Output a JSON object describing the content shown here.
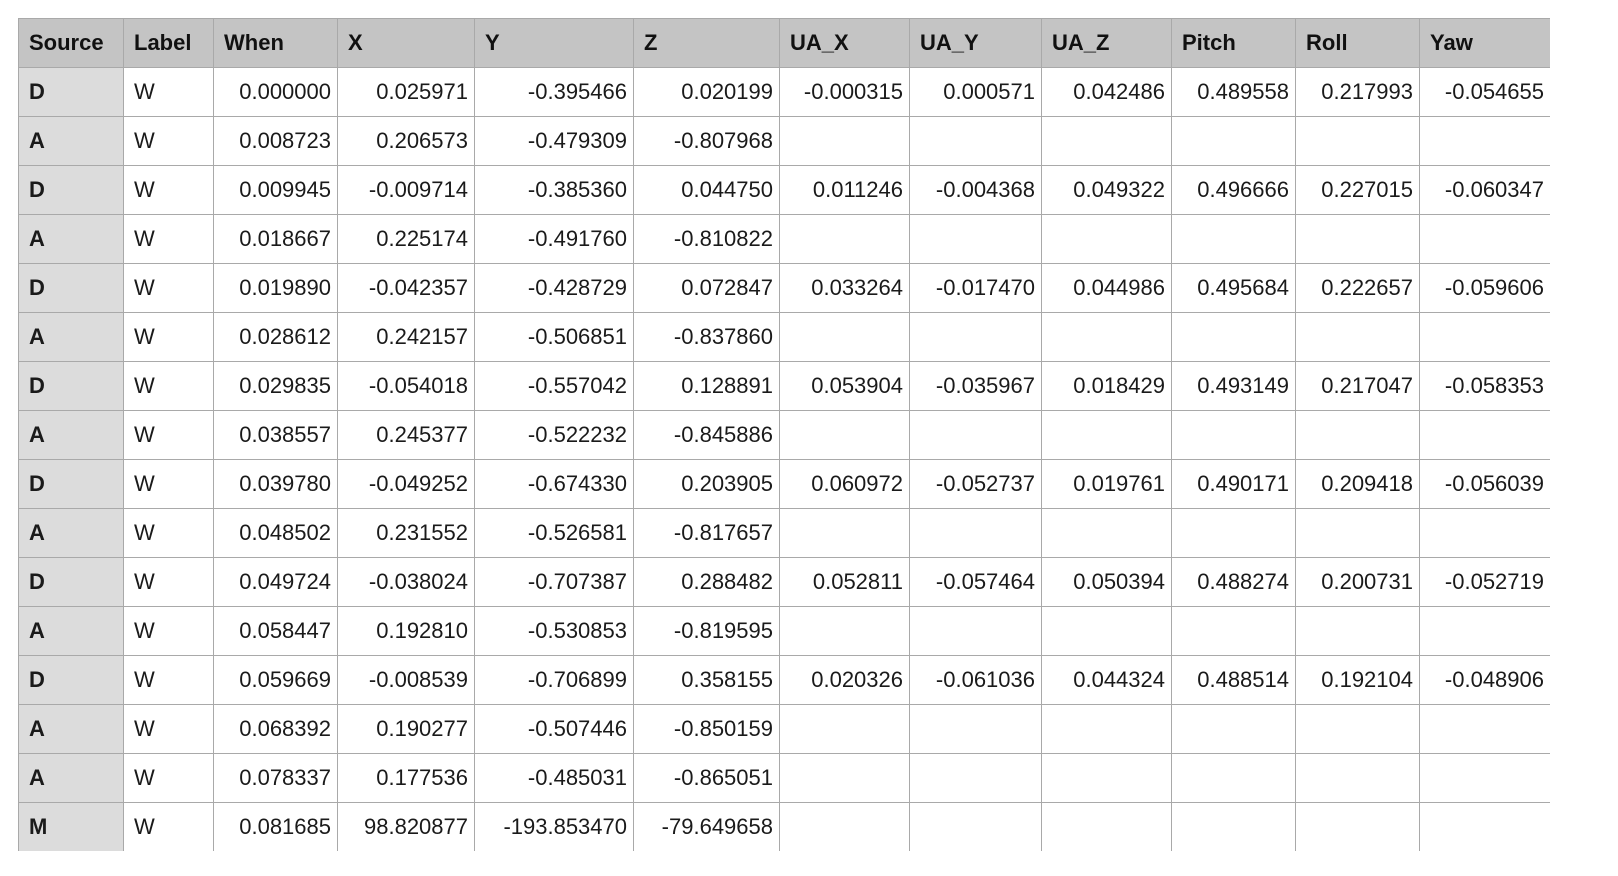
{
  "table": {
    "columns": [
      "Source",
      "Label",
      "When",
      "X",
      "Y",
      "Z",
      "UA_X",
      "UA_Y",
      "UA_Z",
      "Pitch",
      "Roll",
      "Yaw"
    ],
    "rows": [
      [
        "D",
        "W",
        "0.000000",
        "0.025971",
        "-0.395466",
        "0.020199",
        "-0.000315",
        "0.000571",
        "0.042486",
        "0.489558",
        "0.217993",
        "-0.054655"
      ],
      [
        "A",
        "W",
        "0.008723",
        "0.206573",
        "-0.479309",
        "-0.807968",
        "",
        "",
        "",
        "",
        "",
        ""
      ],
      [
        "D",
        "W",
        "0.009945",
        "-0.009714",
        "-0.385360",
        "0.044750",
        "0.011246",
        "-0.004368",
        "0.049322",
        "0.496666",
        "0.227015",
        "-0.060347"
      ],
      [
        "A",
        "W",
        "0.018667",
        "0.225174",
        "-0.491760",
        "-0.810822",
        "",
        "",
        "",
        "",
        "",
        ""
      ],
      [
        "D",
        "W",
        "0.019890",
        "-0.042357",
        "-0.428729",
        "0.072847",
        "0.033264",
        "-0.017470",
        "0.044986",
        "0.495684",
        "0.222657",
        "-0.059606"
      ],
      [
        "A",
        "W",
        "0.028612",
        "0.242157",
        "-0.506851",
        "-0.837860",
        "",
        "",
        "",
        "",
        "",
        ""
      ],
      [
        "D",
        "W",
        "0.029835",
        "-0.054018",
        "-0.557042",
        "0.128891",
        "0.053904",
        "-0.035967",
        "0.018429",
        "0.493149",
        "0.217047",
        "-0.058353"
      ],
      [
        "A",
        "W",
        "0.038557",
        "0.245377",
        "-0.522232",
        "-0.845886",
        "",
        "",
        "",
        "",
        "",
        ""
      ],
      [
        "D",
        "W",
        "0.039780",
        "-0.049252",
        "-0.674330",
        "0.203905",
        "0.060972",
        "-0.052737",
        "0.019761",
        "0.490171",
        "0.209418",
        "-0.056039"
      ],
      [
        "A",
        "W",
        "0.048502",
        "0.231552",
        "-0.526581",
        "-0.817657",
        "",
        "",
        "",
        "",
        "",
        ""
      ],
      [
        "D",
        "W",
        "0.049724",
        "-0.038024",
        "-0.707387",
        "0.288482",
        "0.052811",
        "-0.057464",
        "0.050394",
        "0.488274",
        "0.200731",
        "-0.052719"
      ],
      [
        "A",
        "W",
        "0.058447",
        "0.192810",
        "-0.530853",
        "-0.819595",
        "",
        "",
        "",
        "",
        "",
        ""
      ],
      [
        "D",
        "W",
        "0.059669",
        "-0.008539",
        "-0.706899",
        "0.358155",
        "0.020326",
        "-0.061036",
        "0.044324",
        "0.488514",
        "0.192104",
        "-0.048906"
      ],
      [
        "A",
        "W",
        "0.068392",
        "0.190277",
        "-0.507446",
        "-0.850159",
        "",
        "",
        "",
        "",
        "",
        ""
      ],
      [
        "A",
        "W",
        "0.078337",
        "0.177536",
        "-0.485031",
        "-0.865051",
        "",
        "",
        "",
        "",
        "",
        ""
      ],
      [
        "M",
        "W",
        "0.081685",
        "98.820877",
        "-193.853470",
        "-79.649658",
        "",
        "",
        "",
        "",
        "",
        ""
      ]
    ]
  }
}
